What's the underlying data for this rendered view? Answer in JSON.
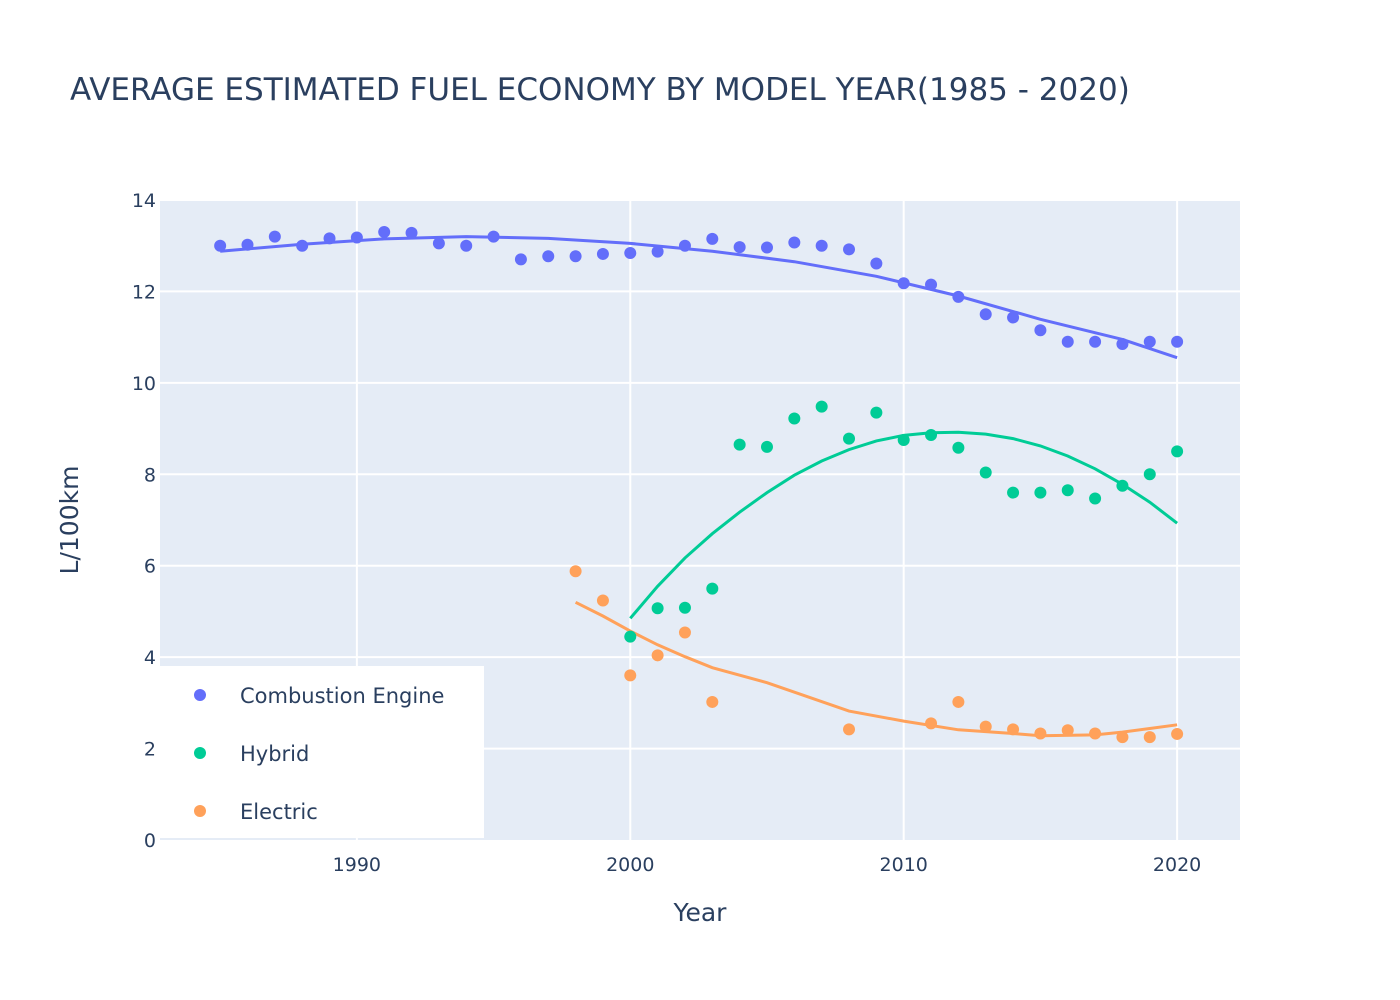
{
  "chart_data": {
    "type": "scatter",
    "title": "AVERAGE ESTIMATED FUEL ECONOMY BY MODEL YEAR(1985 - 2020)",
    "xlabel": "Year",
    "ylabel": "L/100km",
    "xlim": [
      1982.8,
      2022.3
    ],
    "ylim": [
      0,
      14
    ],
    "x_ticks": [
      1990,
      2000,
      2010,
      2020
    ],
    "y_ticks": [
      0,
      2,
      4,
      6,
      8,
      10,
      12,
      14
    ],
    "grid": true,
    "legend_position": "bottom-left",
    "series": [
      {
        "name": "Combustion Engine",
        "color": "#636efa",
        "points": [
          [
            1985,
            13.0
          ],
          [
            1986,
            13.02
          ],
          [
            1987,
            13.2
          ],
          [
            1988,
            13.0
          ],
          [
            1989,
            13.16
          ],
          [
            1990,
            13.18
          ],
          [
            1991,
            13.3
          ],
          [
            1992,
            13.28
          ],
          [
            1993,
            13.05
          ],
          [
            1994,
            13.0
          ],
          [
            1995,
            13.2
          ],
          [
            1996,
            12.7
          ],
          [
            1997,
            12.77
          ],
          [
            1998,
            12.77
          ],
          [
            1999,
            12.82
          ],
          [
            2000,
            12.84
          ],
          [
            2001,
            12.87
          ],
          [
            2002,
            13.0
          ],
          [
            2003,
            13.15
          ],
          [
            2004,
            12.97
          ],
          [
            2005,
            12.96
          ],
          [
            2006,
            13.07
          ],
          [
            2007,
            13.0
          ],
          [
            2008,
            12.92
          ],
          [
            2009,
            12.61
          ],
          [
            2010,
            12.18
          ],
          [
            2011,
            12.15
          ],
          [
            2012,
            11.88
          ],
          [
            2013,
            11.5
          ],
          [
            2014,
            11.43
          ],
          [
            2015,
            11.15
          ],
          [
            2016,
            10.9
          ],
          [
            2017,
            10.9
          ],
          [
            2018,
            10.85
          ],
          [
            2019,
            10.9
          ],
          [
            2020,
            10.9
          ]
        ],
        "trend": [
          [
            1985,
            12.88
          ],
          [
            1988,
            13.03
          ],
          [
            1991,
            13.15
          ],
          [
            1994,
            13.2
          ],
          [
            1997,
            13.16
          ],
          [
            2000,
            13.05
          ],
          [
            2003,
            12.88
          ],
          [
            2006,
            12.65
          ],
          [
            2009,
            12.33
          ],
          [
            2012,
            11.9
          ],
          [
            2015,
            11.39
          ],
          [
            2018,
            10.95
          ],
          [
            2020,
            10.55
          ]
        ]
      },
      {
        "name": "Hybrid",
        "color": "#00cc96",
        "points": [
          [
            2000,
            4.45
          ],
          [
            2001,
            5.07
          ],
          [
            2002,
            5.08
          ],
          [
            2003,
            5.5
          ],
          [
            2004,
            8.65
          ],
          [
            2005,
            8.6
          ],
          [
            2006,
            9.22
          ],
          [
            2007,
            9.48
          ],
          [
            2008,
            8.78
          ],
          [
            2009,
            9.35
          ],
          [
            2010,
            8.75
          ],
          [
            2011,
            8.86
          ],
          [
            2012,
            8.58
          ],
          [
            2013,
            8.04
          ],
          [
            2014,
            7.6
          ],
          [
            2015,
            7.6
          ],
          [
            2016,
            7.65
          ],
          [
            2017,
            7.47
          ],
          [
            2018,
            7.75
          ],
          [
            2019,
            8.0
          ],
          [
            2020,
            8.5
          ]
        ],
        "trend": [
          [
            2000,
            4.85
          ],
          [
            2001,
            5.55
          ],
          [
            2002,
            6.17
          ],
          [
            2003,
            6.7
          ],
          [
            2004,
            7.17
          ],
          [
            2005,
            7.6
          ],
          [
            2006,
            7.98
          ],
          [
            2007,
            8.29
          ],
          [
            2008,
            8.54
          ],
          [
            2009,
            8.73
          ],
          [
            2010,
            8.85
          ],
          [
            2011,
            8.91
          ],
          [
            2012,
            8.92
          ],
          [
            2013,
            8.88
          ],
          [
            2014,
            8.78
          ],
          [
            2015,
            8.62
          ],
          [
            2016,
            8.4
          ],
          [
            2017,
            8.12
          ],
          [
            2018,
            7.78
          ],
          [
            2019,
            7.39
          ],
          [
            2020,
            6.93
          ]
        ]
      },
      {
        "name": "Electric",
        "color": "#ffa15a",
        "points": [
          [
            1998,
            5.88
          ],
          [
            1999,
            5.24
          ],
          [
            2000,
            3.6
          ],
          [
            2001,
            4.04
          ],
          [
            2002,
            4.54
          ],
          [
            2003,
            3.02
          ],
          [
            2008,
            2.42
          ],
          [
            2011,
            2.55
          ],
          [
            2012,
            3.02
          ],
          [
            2013,
            2.48
          ],
          [
            2014,
            2.42
          ],
          [
            2015,
            2.33
          ],
          [
            2016,
            2.4
          ],
          [
            2017,
            2.33
          ],
          [
            2018,
            2.25
          ],
          [
            2019,
            2.25
          ],
          [
            2020,
            2.32
          ]
        ],
        "trend": [
          [
            1998,
            5.2
          ],
          [
            1999,
            4.9
          ],
          [
            2000,
            4.57
          ],
          [
            2001,
            4.27
          ],
          [
            2002,
            4.01
          ],
          [
            2003,
            3.77
          ],
          [
            2005,
            3.44
          ],
          [
            2008,
            2.82
          ],
          [
            2010,
            2.6
          ],
          [
            2012,
            2.41
          ],
          [
            2014,
            2.33
          ],
          [
            2015,
            2.28
          ],
          [
            2017,
            2.3
          ],
          [
            2018,
            2.36
          ],
          [
            2019,
            2.44
          ],
          [
            2020,
            2.52
          ]
        ]
      }
    ]
  }
}
